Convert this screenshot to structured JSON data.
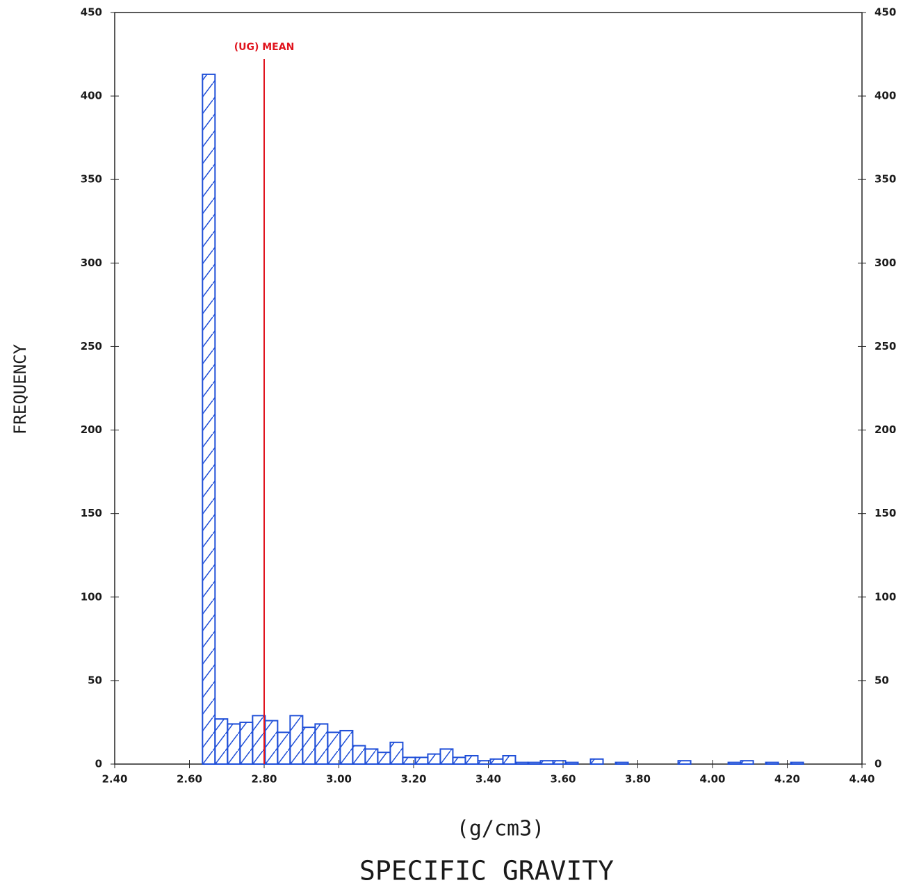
{
  "chart_data": {
    "type": "histogram",
    "title": "SPECIFIC GRAVITY",
    "xlabel": "(g/cm3)",
    "ylabel": "FREQUENCY",
    "color": "#1f4fd8",
    "bins": [
      2.635,
      2.6685,
      2.702,
      2.7355,
      2.769,
      2.8025,
      2.836,
      2.8695,
      2.903,
      2.9365,
      2.97,
      3.0035,
      3.037,
      3.0705,
      3.104,
      3.1375,
      3.171,
      3.2045,
      3.238,
      3.2715,
      3.305,
      3.3385,
      3.372,
      3.4055,
      3.439,
      3.4725,
      3.506,
      3.5395,
      3.573,
      3.6065,
      3.64,
      3.6735,
      3.707,
      3.7405,
      3.774,
      3.8075,
      3.841,
      3.8745,
      3.908,
      3.9415,
      3.975,
      4.0085,
      4.042,
      4.0755,
      4.109,
      4.1425,
      4.176,
      4.2095,
      4.243
    ],
    "values": [
      413,
      27,
      24,
      25,
      29,
      26,
      19,
      29,
      22,
      24,
      19,
      20,
      11,
      9,
      7,
      13,
      4,
      4,
      6,
      9,
      4,
      5,
      2,
      3,
      5,
      1,
      1,
      2,
      2,
      1,
      0,
      3,
      0,
      1,
      0,
      0,
      0,
      0,
      2,
      0,
      0,
      0,
      1,
      2,
      0,
      1,
      0,
      1
    ],
    "xlim": [
      2.4,
      4.4
    ],
    "xticks": [
      {
        "value": 2.4,
        "label": "2.40"
      },
      {
        "value": 2.6,
        "label": "2.60"
      },
      {
        "value": 2.8,
        "label": "2.80"
      },
      {
        "value": 3.0,
        "label": "3.00"
      },
      {
        "value": 3.2,
        "label": "3.20"
      },
      {
        "value": 3.4,
        "label": "3.40"
      },
      {
        "value": 3.6,
        "label": "3.60"
      },
      {
        "value": 3.8,
        "label": "3.80"
      },
      {
        "value": 4.0,
        "label": "4.00"
      },
      {
        "value": 4.2,
        "label": "4.20"
      },
      {
        "value": 4.4,
        "label": "4.40"
      }
    ],
    "ylim": [
      0,
      450
    ],
    "yticks": [
      0,
      50,
      100,
      150,
      200,
      250,
      300,
      350,
      400,
      450
    ],
    "mean": {
      "value": 2.8,
      "label": "(UG) MEAN",
      "color": "#e0141e"
    }
  }
}
